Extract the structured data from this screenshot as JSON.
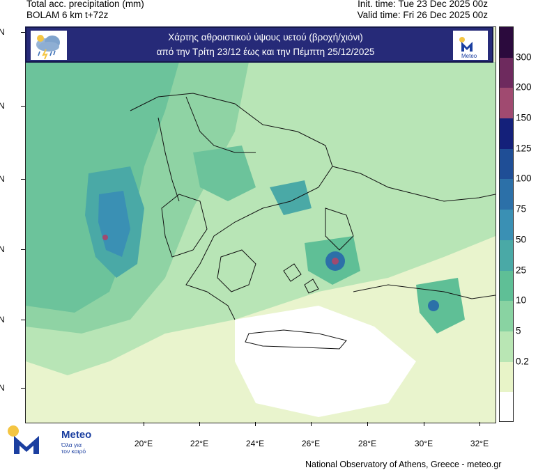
{
  "header": {
    "left_line1": "Total acc. precipitation (mm)",
    "left_line2": "BOLAM 6 km t+72z",
    "right_line1": "Init. time: Tue 23 Dec 2025 00z",
    "right_line2": "Valid time: Fri 26 Dec 2025 00z"
  },
  "banner": {
    "title_line1": "Χάρτης αθροιστικού ύψους υετού (βροχή/χιόνι)",
    "title_line2": "από την Τρίτη 23/12 έως και την Πέμπτη 25/12/2025",
    "left_icon": "rain-cloud-lightning-icon",
    "right_logo_text": "Meteo"
  },
  "axes": {
    "lat_labels": [
      "N",
      "N",
      "N",
      "N",
      "N",
      "N"
    ],
    "lon_labels": [
      "20°E",
      "22°E",
      "24°E",
      "26°E",
      "28°E",
      "30°E",
      "32°E"
    ]
  },
  "colorbar": {
    "labels": [
      "300",
      "200",
      "150",
      "125",
      "100",
      "75",
      "50",
      "25",
      "10",
      "5",
      "0.2"
    ],
    "colors": [
      "#2b0a3d",
      "#6e2a5e",
      "#a04a70",
      "#14207a",
      "#1f4e96",
      "#2c70a8",
      "#3a90b4",
      "#4aa9a6",
      "#5fbf96",
      "#89d3a2",
      "#b9e6b4",
      "#e8f4c8",
      "#ffffff"
    ]
  },
  "footer": {
    "credit": "National Observatory of Athens, Greece - meteo.gr"
  },
  "logo": {
    "brand": "Meteo",
    "slogan_line1": "Όλα για",
    "slogan_line2": "τον καιρό"
  }
}
